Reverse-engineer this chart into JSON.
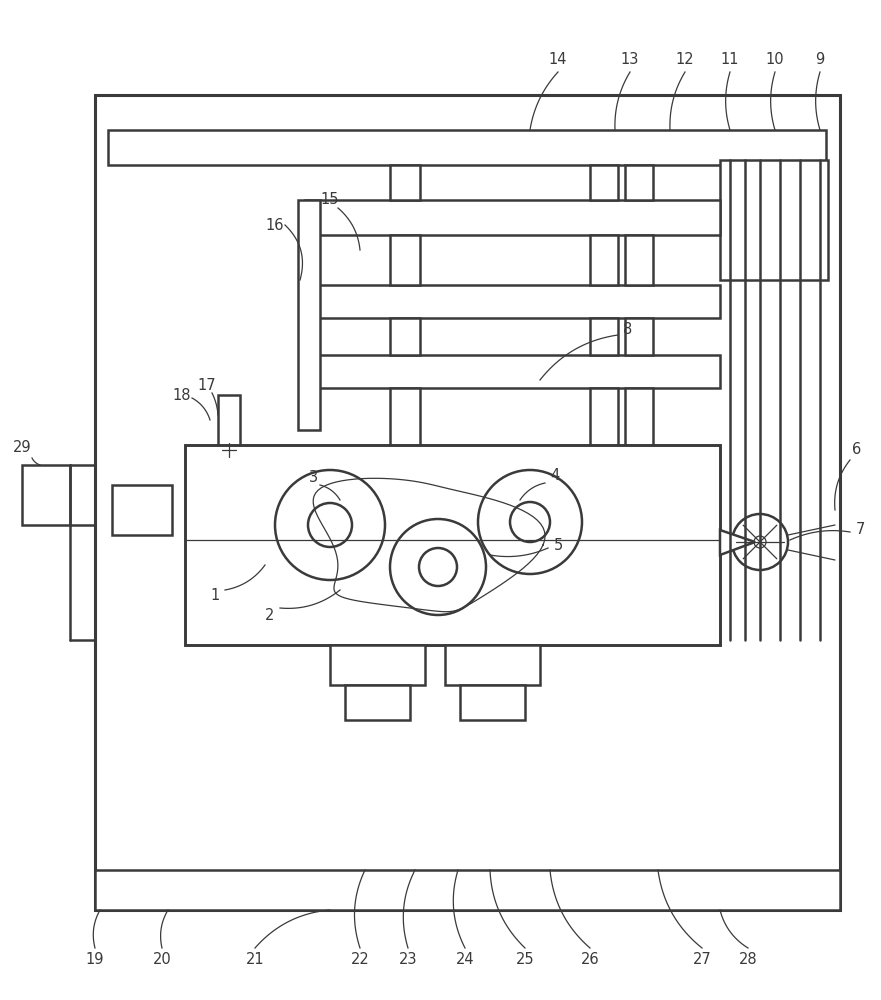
{
  "bg_color": "#ffffff",
  "line_color": "#3a3a3a",
  "lw_main": 1.8,
  "lw_thin": 0.9,
  "lw_outer": 2.2,
  "fontsize": 10.5
}
